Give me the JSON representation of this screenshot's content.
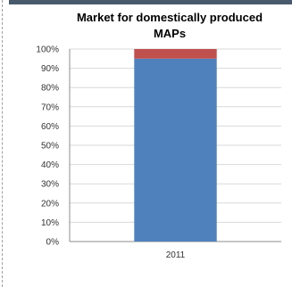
{
  "chart_data": {
    "type": "bar",
    "stacked": true,
    "title": "Market for domestically produced MAPs",
    "categories": [
      "2011"
    ],
    "series": [
      {
        "values": [
          95
        ],
        "color": "#4f81bd"
      },
      {
        "values": [
          5
        ],
        "color": "#c0504d"
      }
    ],
    "ylim": [
      0,
      100
    ],
    "yticks": [
      "0%",
      "10%",
      "20%",
      "30%",
      "40%",
      "50%",
      "60%",
      "70%",
      "80%",
      "90%",
      "100%"
    ],
    "grid": true,
    "legend": "none"
  }
}
